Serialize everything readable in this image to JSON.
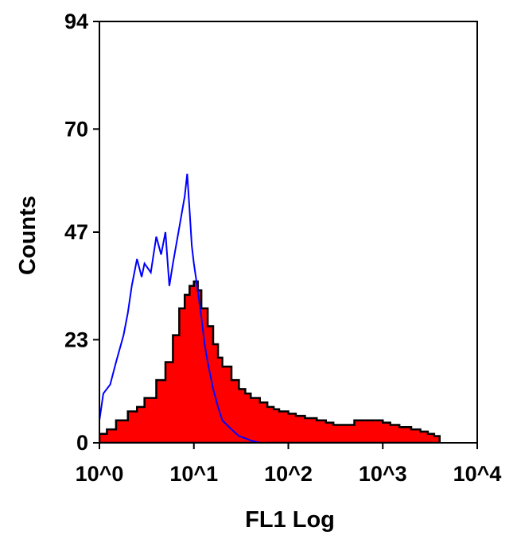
{
  "chart_data": {
    "type": "area",
    "title": "",
    "xlabel": "FL1 Log",
    "ylabel": "Counts",
    "x_scale": "log",
    "xlim": [
      1,
      10000
    ],
    "ylim": [
      0,
      94
    ],
    "x_ticks": [
      {
        "value": 1,
        "label": "10^0"
      },
      {
        "value": 10,
        "label": "10^1"
      },
      {
        "value": 100,
        "label": "10^2"
      },
      {
        "value": 1000,
        "label": "10^3"
      },
      {
        "value": 10000,
        "label": "10^4"
      }
    ],
    "y_ticks": [
      {
        "value": 0,
        "label": "0"
      },
      {
        "value": 23,
        "label": "23"
      },
      {
        "value": 47,
        "label": "47"
      },
      {
        "value": 70,
        "label": "70"
      },
      {
        "value": 94,
        "label": "94"
      }
    ],
    "grid": false,
    "series": [
      {
        "style": "filled",
        "fill": "#ff0000",
        "outline": "#000000",
        "x": [
          1,
          1.2,
          1.5,
          2,
          2.5,
          3,
          4,
          5,
          6,
          7,
          8,
          9,
          10,
          11,
          12,
          14,
          16,
          18,
          20,
          25,
          30,
          35,
          40,
          50,
          60,
          70,
          80,
          100,
          120,
          150,
          200,
          250,
          300,
          400,
          500,
          600,
          700,
          800,
          1000,
          1200,
          1500,
          2000,
          2500,
          3000,
          3500,
          4000
        ],
        "values": [
          2,
          3,
          5,
          7,
          8,
          10,
          14,
          18,
          24,
          30,
          33,
          35,
          36,
          34,
          30,
          26,
          22,
          19,
          17,
          14,
          12,
          11,
          10,
          9,
          8,
          7.5,
          7,
          6.5,
          6,
          5.5,
          5,
          4.5,
          4,
          4,
          5,
          5,
          5,
          5,
          4.5,
          4,
          3.5,
          3,
          2.5,
          2,
          1.5,
          0
        ]
      },
      {
        "style": "line",
        "color": "#0000ff",
        "x": [
          1,
          1.1,
          1.3,
          1.5,
          1.8,
          2,
          2.2,
          2.5,
          2.8,
          3,
          3.5,
          4,
          4.5,
          5,
          5.5,
          6,
          7,
          8,
          8.5,
          9,
          9.5,
          10,
          11,
          12,
          13,
          14,
          16,
          18,
          20,
          25,
          30,
          35,
          40,
          50,
          60
        ],
        "values": [
          5,
          11,
          13,
          18,
          24,
          29,
          35,
          41,
          37,
          40,
          38,
          46,
          42,
          47,
          35,
          40,
          48,
          55,
          60,
          52,
          44,
          40,
          34,
          28,
          22,
          18,
          12,
          8,
          5,
          3,
          1.5,
          1,
          0.5,
          0,
          0
        ]
      }
    ]
  }
}
